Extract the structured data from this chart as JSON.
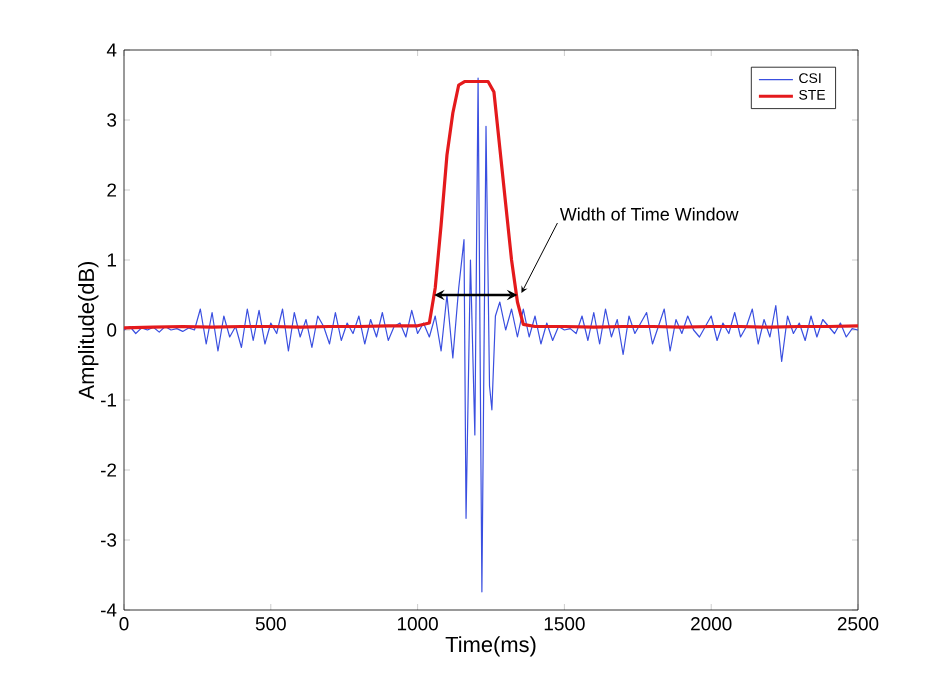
{
  "chart_data": {
    "type": "line",
    "xlabel": "Time(ms)",
    "ylabel": "Amplitude(dB)",
    "xlim": [
      0,
      2500
    ],
    "ylim": [
      -4,
      4
    ],
    "xticks": [
      0,
      500,
      1000,
      1500,
      2000,
      2500
    ],
    "yticks": [
      -4,
      -3,
      -2,
      -1,
      0,
      1,
      2,
      3,
      4
    ],
    "grid": false,
    "legend": "top right",
    "marker": "none",
    "series": [
      {
        "name": "CSI",
        "color": "#3a4fe0",
        "x": [
          0,
          20,
          40,
          60,
          80,
          100,
          120,
          140,
          160,
          180,
          200,
          220,
          240,
          260,
          280,
          300,
          320,
          340,
          360,
          380,
          400,
          420,
          440,
          460,
          480,
          500,
          520,
          540,
          560,
          580,
          600,
          620,
          640,
          660,
          680,
          700,
          720,
          740,
          760,
          780,
          800,
          820,
          840,
          860,
          880,
          900,
          920,
          940,
          960,
          980,
          1000,
          1020,
          1040,
          1060,
          1080,
          1100,
          1120,
          1140,
          1158,
          1165,
          1180,
          1195,
          1206,
          1219,
          1233,
          1245,
          1253,
          1265,
          1280,
          1300,
          1320,
          1340,
          1360,
          1380,
          1400,
          1420,
          1440,
          1460,
          1480,
          1500,
          1520,
          1540,
          1560,
          1580,
          1600,
          1620,
          1640,
          1660,
          1680,
          1700,
          1720,
          1740,
          1760,
          1780,
          1800,
          1820,
          1840,
          1860,
          1880,
          1900,
          1920,
          1940,
          1960,
          1980,
          2000,
          2020,
          2040,
          2060,
          2080,
          2100,
          2120,
          2140,
          2160,
          2180,
          2200,
          2220,
          2240,
          2260,
          2280,
          2300,
          2320,
          2340,
          2360,
          2380,
          2400,
          2420,
          2440,
          2460,
          2480,
          2500
        ],
        "values": [
          0,
          0.05,
          -0.05,
          0.03,
          0,
          0.04,
          -0.03,
          0.05,
          0,
          0.02,
          -0.02,
          0.03,
          0,
          0.3,
          -0.2,
          0.25,
          -0.3,
          0.2,
          -0.1,
          0.05,
          -0.25,
          0.3,
          -0.15,
          0.28,
          -0.2,
          0.1,
          -0.05,
          0.3,
          -0.3,
          0.25,
          -0.1,
          0.15,
          -0.25,
          0.2,
          0.05,
          -0.2,
          0.25,
          -0.15,
          0.1,
          -0.05,
          0.2,
          -0.2,
          0.15,
          -0.1,
          0.25,
          -0.15,
          0.05,
          0.1,
          -0.1,
          0.28,
          -0.05,
          0.1,
          -0.1,
          0.2,
          -0.3,
          0.5,
          -0.4,
          0.6,
          1.29,
          -2.69,
          1.0,
          -1.5,
          3.6,
          -3.74,
          2.91,
          -0.8,
          -1.14,
          0.2,
          0.4,
          0.0,
          0.3,
          -0.1,
          0.3,
          -0.1,
          0.2,
          -0.2,
          0.1,
          -0.15,
          0.05,
          0.0,
          0.02,
          -0.05,
          0.2,
          -0.15,
          0.25,
          -0.2,
          0.3,
          -0.1,
          0.15,
          -0.35,
          0.2,
          -0.05,
          0.1,
          0.25,
          -0.2,
          0.05,
          0.3,
          -0.3,
          0.15,
          -0.05,
          0.2,
          0.0,
          -0.1,
          0.05,
          0.2,
          -0.15,
          0.1,
          -0.05,
          0.25,
          -0.1,
          0.05,
          0.3,
          -0.2,
          0.15,
          -0.1,
          0.35,
          -0.45,
          0.2,
          -0.05,
          0.1,
          -0.15,
          0.2,
          -0.1,
          0.15,
          0.05,
          -0.05,
          0.1,
          -0.1,
          0.02,
          0.0
        ]
      },
      {
        "name": "STE",
        "color": "#e41a1c",
        "x": [
          0,
          100,
          200,
          300,
          400,
          500,
          600,
          700,
          800,
          900,
          1000,
          1040,
          1060,
          1080,
          1100,
          1120,
          1140,
          1160,
          1200,
          1240,
          1260,
          1280,
          1300,
          1320,
          1340,
          1360,
          1400,
          1500,
          1600,
          1700,
          1800,
          1900,
          2000,
          2100,
          2200,
          2300,
          2400,
          2500
        ],
        "values": [
          0.03,
          0.04,
          0.05,
          0.04,
          0.05,
          0.05,
          0.04,
          0.05,
          0.05,
          0.06,
          0.06,
          0.1,
          0.6,
          1.5,
          2.5,
          3.1,
          3.5,
          3.55,
          3.55,
          3.55,
          3.4,
          2.6,
          1.8,
          1.0,
          0.4,
          0.08,
          0.05,
          0.05,
          0.04,
          0.05,
          0.05,
          0.04,
          0.05,
          0.05,
          0.04,
          0.05,
          0.05,
          0.06
        ]
      }
    ],
    "annotations": [
      {
        "text": "Width of Time Window",
        "x": 1340,
        "y": 0.5
      }
    ]
  }
}
